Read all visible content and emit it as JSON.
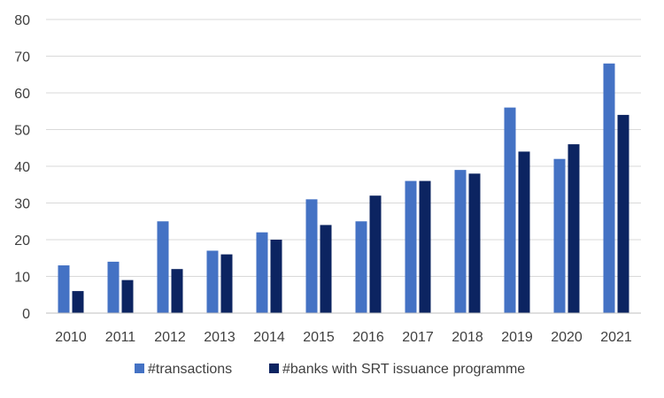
{
  "chart_data": {
    "type": "bar",
    "title": "",
    "xlabel": "",
    "ylabel": "",
    "categories": [
      "2010",
      "2011",
      "2012",
      "2013",
      "2014",
      "2015",
      "2016",
      "2017",
      "2018",
      "2019",
      "2020",
      "2021"
    ],
    "series": [
      {
        "name": "#transactions",
        "color": "#4472c4",
        "values": [
          13,
          14,
          25,
          17,
          22,
          31,
          25,
          36,
          39,
          56,
          42,
          68
        ]
      },
      {
        "name": "#banks with SRT issuance programme",
        "color": "#0c2461",
        "values": [
          6,
          9,
          12,
          16,
          20,
          24,
          32,
          36,
          38,
          44,
          46,
          54
        ]
      }
    ],
    "ylim": [
      0,
      80
    ],
    "yticks": [
      0,
      10,
      20,
      30,
      40,
      50,
      60,
      70,
      80
    ],
    "grid": true,
    "legend_position": "bottom"
  }
}
